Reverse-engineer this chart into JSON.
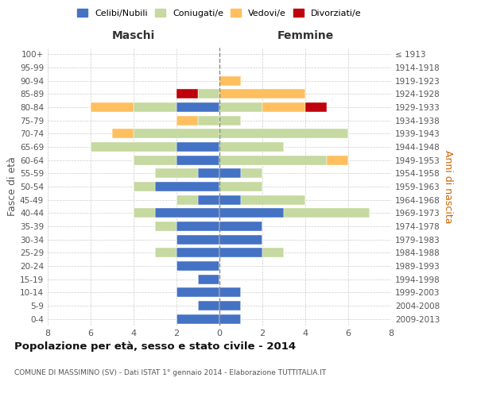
{
  "age_groups": [
    "0-4",
    "5-9",
    "10-14",
    "15-19",
    "20-24",
    "25-29",
    "30-34",
    "35-39",
    "40-44",
    "45-49",
    "50-54",
    "55-59",
    "60-64",
    "65-69",
    "70-74",
    "75-79",
    "80-84",
    "85-89",
    "90-94",
    "95-99",
    "100+"
  ],
  "birth_years": [
    "2009-2013",
    "2004-2008",
    "1999-2003",
    "1994-1998",
    "1989-1993",
    "1984-1988",
    "1979-1983",
    "1974-1978",
    "1969-1973",
    "1964-1968",
    "1959-1963",
    "1954-1958",
    "1949-1953",
    "1944-1948",
    "1939-1943",
    "1934-1938",
    "1929-1933",
    "1924-1928",
    "1919-1923",
    "1914-1918",
    "≤ 1913"
  ],
  "males": {
    "celibi": [
      2,
      1,
      2,
      1,
      2,
      2,
      2,
      2,
      3,
      1,
      3,
      1,
      2,
      2,
      0,
      0,
      2,
      0,
      0,
      0,
      0
    ],
    "coniugati": [
      0,
      0,
      0,
      0,
      0,
      1,
      0,
      1,
      1,
      1,
      1,
      2,
      2,
      4,
      4,
      1,
      2,
      1,
      0,
      0,
      0
    ],
    "vedovi": [
      0,
      0,
      0,
      0,
      0,
      0,
      0,
      0,
      0,
      0,
      0,
      0,
      0,
      0,
      1,
      1,
      2,
      0,
      0,
      0,
      0
    ],
    "divorziati": [
      0,
      0,
      0,
      0,
      0,
      0,
      0,
      0,
      0,
      0,
      0,
      0,
      0,
      0,
      0,
      0,
      0,
      1,
      0,
      0,
      0
    ]
  },
  "females": {
    "nubili": [
      1,
      1,
      1,
      0,
      0,
      2,
      2,
      2,
      3,
      1,
      0,
      1,
      0,
      0,
      0,
      0,
      0,
      0,
      0,
      0,
      0
    ],
    "coniugate": [
      0,
      0,
      0,
      0,
      0,
      1,
      0,
      0,
      4,
      3,
      2,
      1,
      5,
      3,
      6,
      1,
      2,
      0,
      0,
      0,
      0
    ],
    "vedove": [
      0,
      0,
      0,
      0,
      0,
      0,
      0,
      0,
      0,
      0,
      0,
      0,
      1,
      0,
      0,
      0,
      2,
      4,
      1,
      0,
      0
    ],
    "divorziate": [
      0,
      0,
      0,
      0,
      0,
      0,
      0,
      0,
      0,
      0,
      0,
      0,
      0,
      0,
      0,
      0,
      1,
      0,
      0,
      0,
      0
    ]
  },
  "colors": {
    "celibi_nubili": "#4472C4",
    "coniugati": "#C5D9A0",
    "vedovi": "#FFBF5F",
    "divorziati": "#C0000C"
  },
  "title": "Popolazione per età, sesso e stato civile - 2014",
  "subtitle": "COMUNE DI MASSIMINO (SV) - Dati ISTAT 1° gennaio 2014 - Elaborazione TUTTITALIA.IT",
  "xlabel_left": "Maschi",
  "xlabel_right": "Femmine",
  "ylabel_left": "Fasce di età",
  "ylabel_right": "Anni di nascita",
  "xlim": 8,
  "legend_labels": [
    "Celibi/Nubili",
    "Coniugati/e",
    "Vedovi/e",
    "Divorziati/e"
  ]
}
